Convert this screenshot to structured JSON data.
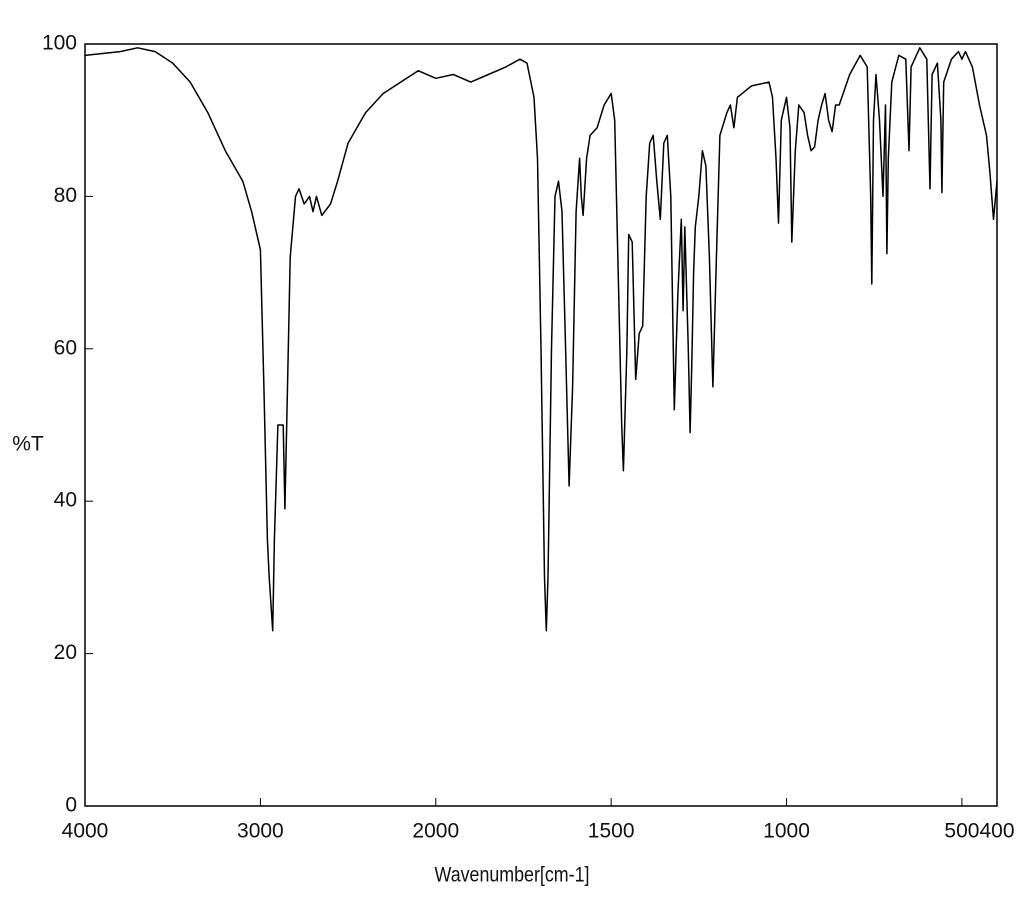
{
  "chart_data": {
    "type": "line",
    "xlabel": "Wavenumber[cm-1]",
    "ylabel": "%T",
    "xlim": [
      4000,
      400
    ],
    "xticks": [
      4000,
      3000,
      2000,
      1500,
      1000,
      500,
      400
    ],
    "xbreak": {
      "at": 2000,
      "factor": 2
    },
    "ylim": [
      0,
      100
    ],
    "yticks": [
      0,
      20,
      40,
      60,
      80,
      100
    ],
    "color": "#000000",
    "x": [
      4000,
      3800,
      3700,
      3600,
      3500,
      3400,
      3300,
      3200,
      3100,
      3050,
      3000,
      2980,
      2960,
      2950,
      2930,
      2920,
      2900,
      2870,
      2860,
      2850,
      2830,
      2800,
      2780,
      2750,
      2720,
      2700,
      2680,
      2650,
      2600,
      2560,
      2500,
      2400,
      2300,
      2200,
      2100,
      2000,
      1950,
      1900,
      1850,
      1800,
      1760,
      1740,
      1720,
      1710,
      1700,
      1690,
      1685,
      1680,
      1670,
      1660,
      1650,
      1640,
      1630,
      1620,
      1610,
      1600,
      1590,
      1585,
      1580,
      1570,
      1560,
      1540,
      1520,
      1500,
      1490,
      1480,
      1470,
      1465,
      1455,
      1450,
      1440,
      1430,
      1420,
      1410,
      1400,
      1390,
      1380,
      1370,
      1360,
      1350,
      1340,
      1330,
      1320,
      1310,
      1300,
      1295,
      1290,
      1280,
      1275,
      1270,
      1265,
      1260,
      1250,
      1240,
      1230,
      1220,
      1210,
      1200,
      1190,
      1170,
      1160,
      1150,
      1140,
      1100,
      1050,
      1040,
      1030,
      1023,
      1015,
      1000,
      990,
      985,
      975,
      965,
      950,
      940,
      930,
      920,
      910,
      900,
      890,
      880,
      870,
      860,
      850,
      820,
      790,
      770,
      760,
      757,
      752,
      745,
      735,
      725,
      718,
      714,
      710,
      700,
      680,
      660,
      651,
      645,
      620,
      600,
      591,
      585,
      570,
      560,
      557,
      552,
      530,
      510,
      500,
      490,
      470,
      450,
      430,
      420,
      410,
      400
    ],
    "values": [
      98.5,
      99,
      99.5,
      99,
      97.5,
      95,
      91,
      86,
      82,
      78,
      73,
      55,
      35,
      30,
      23,
      35,
      50,
      50,
      39,
      50,
      72,
      80,
      81,
      79,
      80,
      78,
      80,
      77.5,
      79,
      82,
      87,
      91,
      93.5,
      95,
      96.5,
      95.5,
      96,
      95,
      96,
      97,
      98,
      97.5,
      93,
      85,
      60,
      30,
      23,
      30,
      60,
      80,
      82,
      78,
      60,
      42,
      55,
      78,
      85,
      80,
      77.5,
      85,
      88,
      89,
      92,
      93.5,
      90,
      70,
      50,
      44,
      60,
      75,
      74,
      56,
      62,
      63,
      80,
      87,
      88,
      82,
      77,
      87,
      88,
      80,
      52,
      67,
      77,
      65,
      76,
      60,
      49,
      58,
      70,
      76,
      80,
      86,
      84,
      72,
      55,
      72,
      88,
      91,
      92,
      89,
      93,
      94.5,
      95,
      93,
      85,
      76.5,
      90,
      93,
      89,
      74,
      86,
      92,
      91,
      88,
      86,
      86.5,
      90,
      92,
      93.5,
      90,
      88.5,
      92,
      92,
      96,
      98.5,
      97,
      80,
      68.5,
      90,
      96,
      90,
      80,
      92,
      72.5,
      85,
      95,
      98.5,
      98,
      86,
      97,
      99.5,
      98,
      81,
      96,
      97.5,
      90,
      80.5,
      95,
      98,
      99,
      98,
      99,
      97,
      92,
      88,
      83,
      77,
      82
    ]
  }
}
